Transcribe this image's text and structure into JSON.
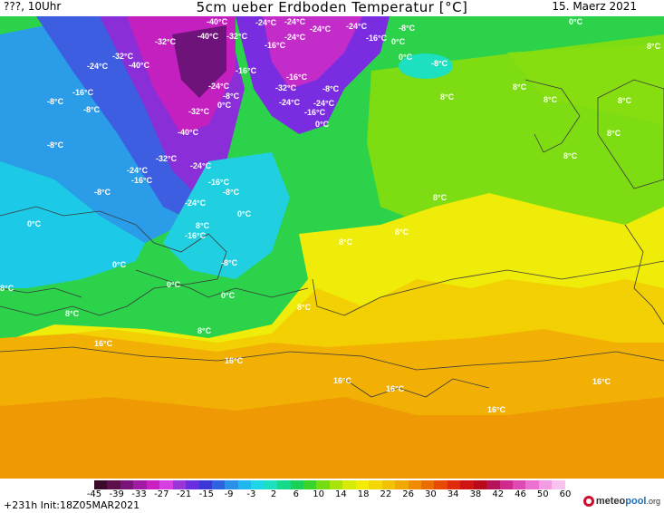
{
  "header": {
    "run_time": "???, 10Uhr",
    "title": "5cm ueber Erdboden Temperatur [°C]",
    "date": "15. Maerz 2021"
  },
  "footer": {
    "init": "+231h  Init:18Z05MAR2021",
    "logo_brand": "meteo",
    "logo_brand2": "pool",
    "logo_tld": ".org"
  },
  "colorbar": {
    "colors": [
      "#3a0a2a",
      "#5c0f4a",
      "#7a137a",
      "#a11aa3",
      "#c920c4",
      "#d63fe0",
      "#9a36d8",
      "#6a2ee0",
      "#3d36d6",
      "#2f62e0",
      "#2a90e8",
      "#20b7ef",
      "#1fd6e8",
      "#1ce0c0",
      "#17d98a",
      "#1ad056",
      "#3bd42a",
      "#74dc10",
      "#a8e40a",
      "#d6ec08",
      "#f4ec06",
      "#f4d806",
      "#f2c204",
      "#f0a804",
      "#ef8c04",
      "#ec6c04",
      "#e84a06",
      "#e02a0a",
      "#d01414",
      "#b80a1a",
      "#b5125a",
      "#cf2a8c",
      "#e048b4",
      "#ec70d0",
      "#f49ce2",
      "#f8c4ee"
    ],
    "ticks": [
      "-45",
      "-39",
      "-33",
      "-27",
      "-21",
      "-15",
      "-9",
      "-3",
      "2",
      "6",
      "10",
      "14",
      "18",
      "22",
      "26",
      "30",
      "34",
      "38",
      "42",
      "46",
      "50",
      "60"
    ]
  },
  "labels": [
    {
      "t": "-40°C"
    },
    {
      "t": "-24°C"
    },
    {
      "t": "-24°C"
    },
    {
      "t": "-24°C"
    },
    {
      "t": "-24°C"
    },
    {
      "t": "-8°C"
    },
    {
      "t": "0°C"
    },
    {
      "t": "-32°C"
    },
    {
      "t": "-40°C"
    },
    {
      "t": "-32°C"
    },
    {
      "t": "-16°C"
    },
    {
      "t": "-24°C"
    },
    {
      "t": "-16°C"
    },
    {
      "t": "0°C"
    },
    {
      "t": "8°C"
    },
    {
      "t": "-32°C"
    },
    {
      "t": "-24°C"
    },
    {
      "t": "-40°C"
    },
    {
      "t": "-16°C"
    },
    {
      "t": "0°C"
    },
    {
      "t": "-8°C"
    },
    {
      "t": "-16°C"
    },
    {
      "t": "-24°C"
    },
    {
      "t": "-32°C"
    },
    {
      "t": "-8°C"
    },
    {
      "t": "-16°C"
    },
    {
      "t": "-24°C"
    },
    {
      "t": "8°C"
    },
    {
      "t": "-8°C"
    },
    {
      "t": "-8°C"
    },
    {
      "t": "-32°C"
    },
    {
      "t": "0°C"
    },
    {
      "t": "-8°C"
    },
    {
      "t": "-24°C"
    },
    {
      "t": "-16°C"
    },
    {
      "t": "0°C"
    },
    {
      "t": "8°C"
    },
    {
      "t": "8°C"
    },
    {
      "t": "8°C"
    },
    {
      "t": "8°C"
    },
    {
      "t": "-40°C"
    },
    {
      "t": "-8°C"
    },
    {
      "t": "-32°C"
    },
    {
      "t": "-24°C"
    },
    {
      "t": "-24°C"
    },
    {
      "t": "-16°C"
    },
    {
      "t": "8°C"
    },
    {
      "t": "8°C"
    },
    {
      "t": "-8°C"
    },
    {
      "t": "-16°C"
    },
    {
      "t": "-8°C"
    },
    {
      "t": "-24°C"
    },
    {
      "t": "0°C"
    },
    {
      "t": "8°C"
    },
    {
      "t": "0°C"
    },
    {
      "t": "-16°C"
    },
    {
      "t": "8°C"
    },
    {
      "t": "8°C"
    },
    {
      "t": "0°C"
    },
    {
      "t": "-8°C"
    },
    {
      "t": "8°C"
    },
    {
      "t": "0°C"
    },
    {
      "t": "0°C"
    },
    {
      "t": "8°C"
    },
    {
      "t": "8°C"
    },
    {
      "t": "8°C"
    },
    {
      "t": "16°C"
    },
    {
      "t": "16°C"
    },
    {
      "t": "16°C"
    },
    {
      "t": "16°C"
    },
    {
      "t": "16°C"
    },
    {
      "t": "16°C"
    }
  ],
  "colors": {
    "label_text": "#ffffff",
    "coastline": "#3a3a3a"
  }
}
